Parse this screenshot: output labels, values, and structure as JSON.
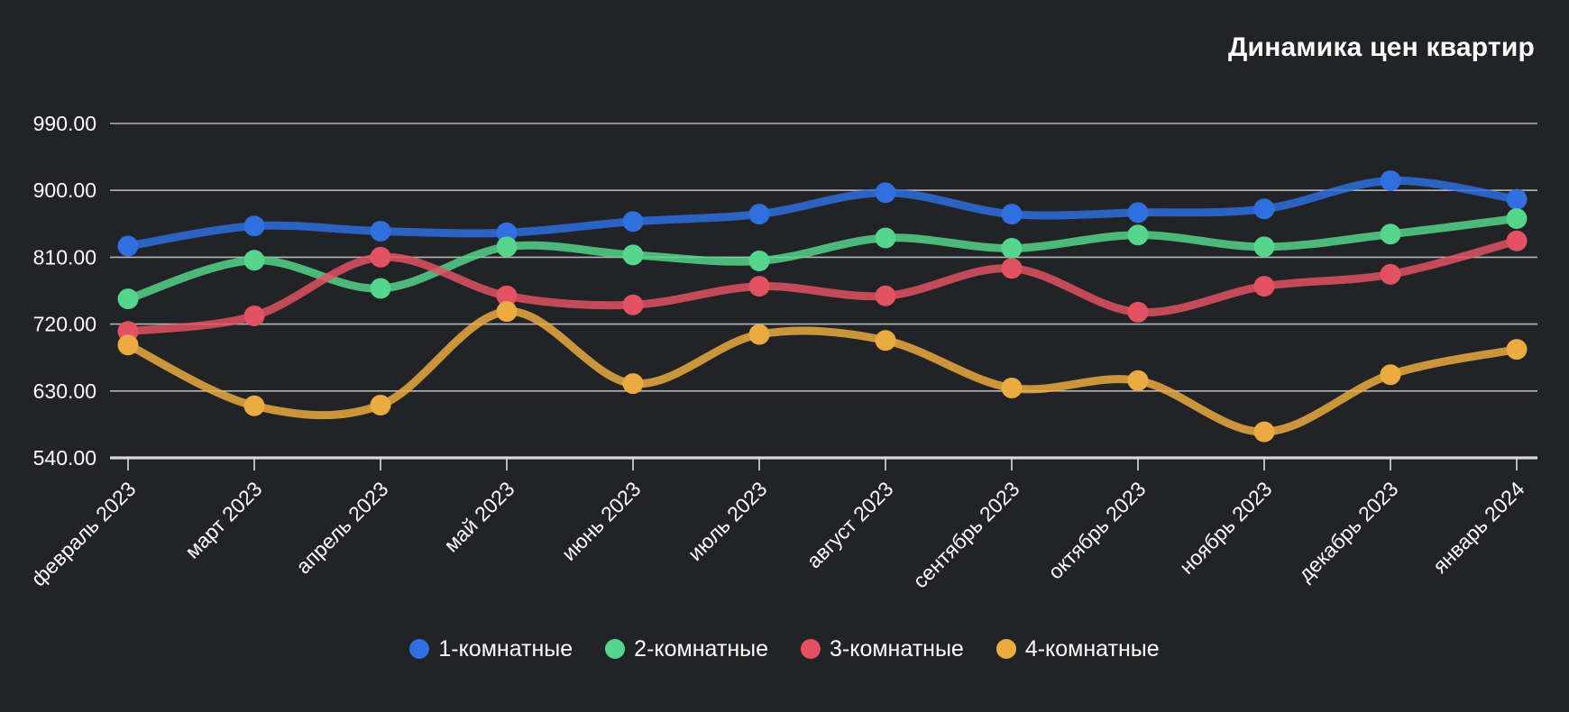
{
  "colors": {
    "background": "#222326",
    "grid": "#cfcfd2",
    "axis": "#d9d9d9",
    "tick": "#b8b8bb",
    "text": "#ffffff"
  },
  "chart_data": {
    "type": "line",
    "title": "Динамика цен квартир",
    "categories": [
      "февраль 2023",
      "март 2023",
      "апрель 2023",
      "май 2023",
      "июнь 2023",
      "июль 2023",
      "август 2023",
      "сентябрь 2023",
      "октябрь 2023",
      "ноябрь 2023",
      "декабрь 2023",
      "январь 2024"
    ],
    "y_ticks": [
      540,
      630,
      720,
      810,
      900,
      990
    ],
    "y_tick_labels": [
      "540.00",
      "630.00",
      "720.00",
      "810.00",
      "900.00",
      "990.00"
    ],
    "ylim": [
      540,
      990
    ],
    "xlabel": "",
    "ylabel": "",
    "grid": "horizontal-only",
    "legend_position": "bottom-center",
    "series": [
      {
        "name": "1-комнатные",
        "color": "#2f6fe0",
        "values": [
          825,
          852,
          845,
          843,
          858,
          868,
          897,
          868,
          870,
          875,
          913,
          888
        ]
      },
      {
        "name": "2-комнатные",
        "color": "#55d68c",
        "values": [
          754,
          806,
          768,
          824,
          813,
          805,
          836,
          822,
          840,
          824,
          841,
          862
        ]
      },
      {
        "name": "3-комнатные",
        "color": "#e25263",
        "values": [
          710,
          731,
          810,
          758,
          746,
          771,
          758,
          795,
          736,
          771,
          787,
          832
        ]
      },
      {
        "name": "4-комнатные",
        "color": "#ecab40",
        "values": [
          692,
          610,
          611,
          737,
          640,
          706,
          698,
          634,
          644,
          575,
          652,
          686
        ]
      }
    ]
  }
}
